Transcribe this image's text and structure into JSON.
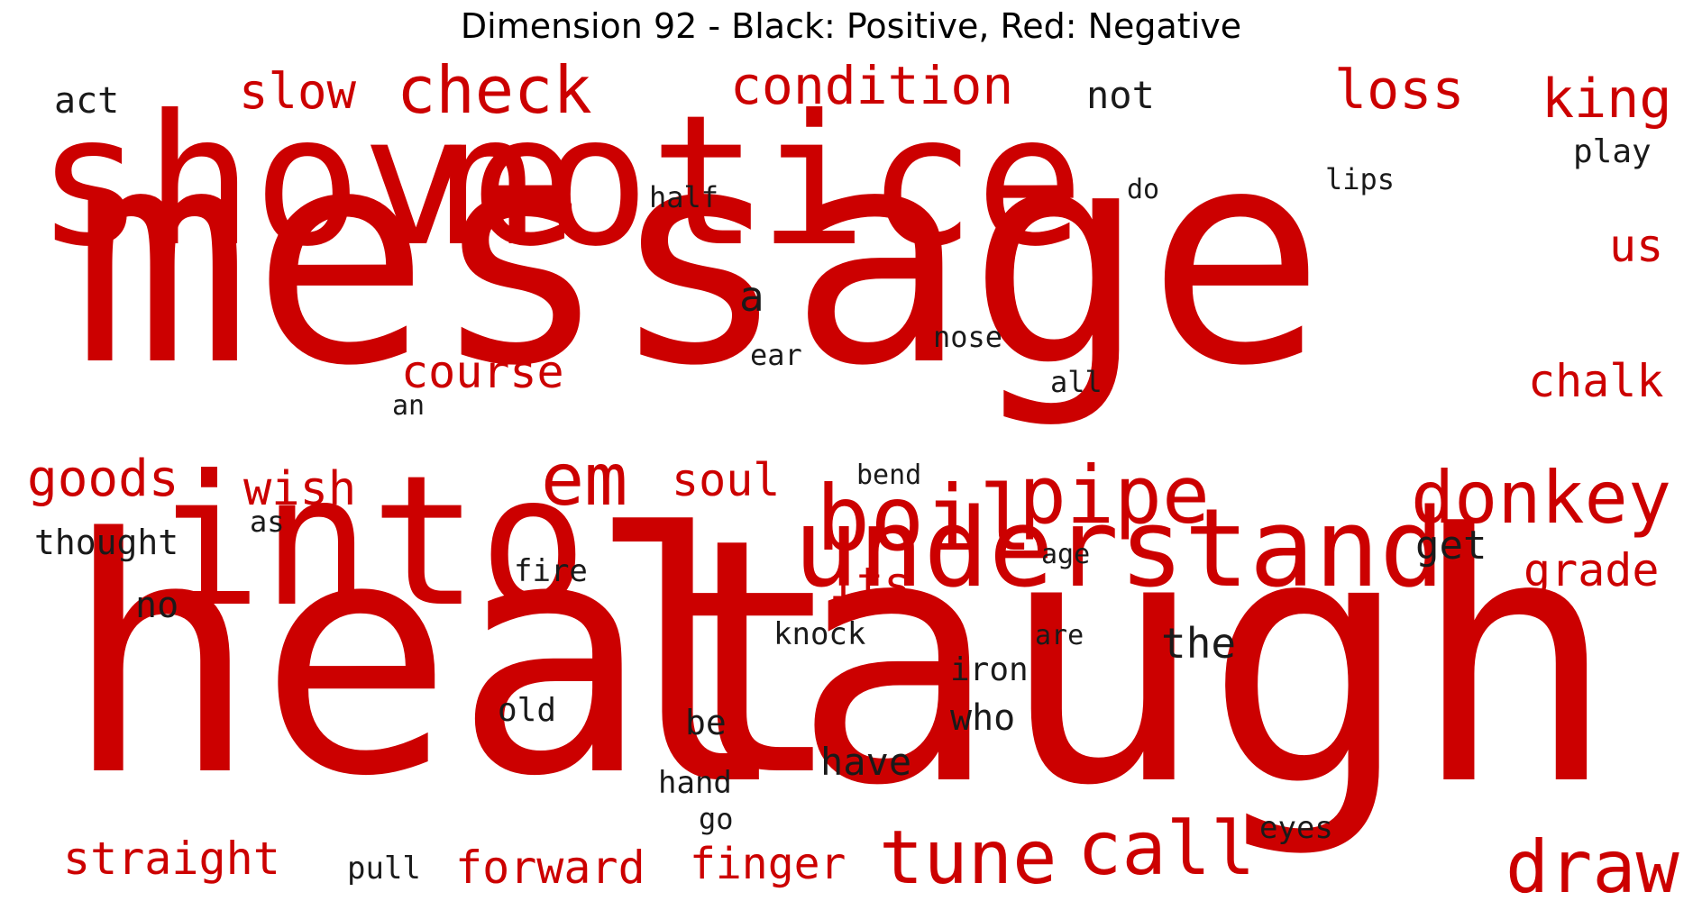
{
  "title": "Dimension 92 - Black: Positive, Red: Negative",
  "colors": {
    "positive": "#1a1a1a",
    "negative": "#cc0000"
  },
  "words": [
    {
      "text": "message",
      "sign": "negative"
    },
    {
      "text": "heat",
      "sign": "negative"
    },
    {
      "text": "laugh",
      "sign": "negative"
    },
    {
      "text": "shove",
      "sign": "negative"
    },
    {
      "text": "notice",
      "sign": "negative"
    },
    {
      "text": "into",
      "sign": "negative"
    },
    {
      "text": "understand",
      "sign": "negative"
    },
    {
      "text": "boil",
      "sign": "negative"
    },
    {
      "text": "pipe",
      "sign": "negative"
    },
    {
      "text": "donkey",
      "sign": "negative"
    },
    {
      "text": "em",
      "sign": "negative"
    },
    {
      "text": "tune",
      "sign": "negative"
    },
    {
      "text": "call",
      "sign": "negative"
    },
    {
      "text": "draw",
      "sign": "negative"
    },
    {
      "text": "check",
      "sign": "negative"
    },
    {
      "text": "condition",
      "sign": "negative"
    },
    {
      "text": "loss",
      "sign": "negative"
    },
    {
      "text": "king",
      "sign": "negative"
    },
    {
      "text": "slow",
      "sign": "negative"
    },
    {
      "text": "goods",
      "sign": "negative"
    },
    {
      "text": "wish",
      "sign": "negative"
    },
    {
      "text": "soul",
      "sign": "negative"
    },
    {
      "text": "course",
      "sign": "negative"
    },
    {
      "text": "chalk",
      "sign": "negative"
    },
    {
      "text": "us",
      "sign": "negative"
    },
    {
      "text": "grade",
      "sign": "negative"
    },
    {
      "text": "its",
      "sign": "negative"
    },
    {
      "text": "straight",
      "sign": "negative"
    },
    {
      "text": "forward",
      "sign": "negative"
    },
    {
      "text": "finger",
      "sign": "negative"
    },
    {
      "text": "act",
      "sign": "positive"
    },
    {
      "text": "not",
      "sign": "positive"
    },
    {
      "text": "play",
      "sign": "positive"
    },
    {
      "text": "half",
      "sign": "positive"
    },
    {
      "text": "do",
      "sign": "positive"
    },
    {
      "text": "lips",
      "sign": "positive"
    },
    {
      "text": "a",
      "sign": "positive"
    },
    {
      "text": "nose",
      "sign": "positive"
    },
    {
      "text": "ear",
      "sign": "positive"
    },
    {
      "text": "all",
      "sign": "positive"
    },
    {
      "text": "an",
      "sign": "positive"
    },
    {
      "text": "bend",
      "sign": "positive"
    },
    {
      "text": "as",
      "sign": "positive"
    },
    {
      "text": "thought",
      "sign": "positive"
    },
    {
      "text": "get",
      "sign": "positive"
    },
    {
      "text": "age",
      "sign": "positive"
    },
    {
      "text": "fire",
      "sign": "positive"
    },
    {
      "text": "no",
      "sign": "positive"
    },
    {
      "text": "knock",
      "sign": "positive"
    },
    {
      "text": "are",
      "sign": "positive"
    },
    {
      "text": "the",
      "sign": "positive"
    },
    {
      "text": "iron",
      "sign": "positive"
    },
    {
      "text": "old",
      "sign": "positive"
    },
    {
      "text": "be",
      "sign": "positive"
    },
    {
      "text": "who",
      "sign": "positive"
    },
    {
      "text": "have",
      "sign": "positive"
    },
    {
      "text": "hand",
      "sign": "positive"
    },
    {
      "text": "go",
      "sign": "positive"
    },
    {
      "text": "eyes",
      "sign": "positive"
    },
    {
      "text": "pull",
      "sign": "positive"
    }
  ]
}
